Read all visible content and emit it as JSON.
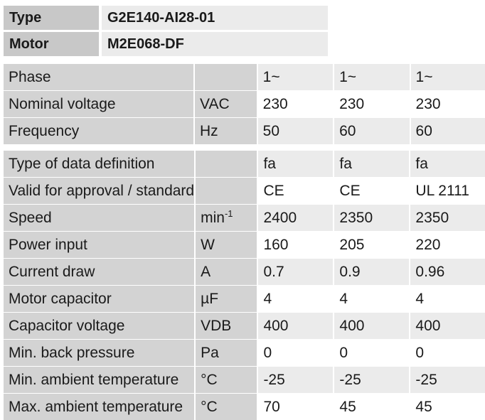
{
  "header": {
    "type_label": "Type",
    "type_value": "G2E140-AI28-01",
    "motor_label": "Motor",
    "motor_value": "M2E068-DF"
  },
  "group1": [
    {
      "label": "Phase",
      "unit": "",
      "v1": "1~",
      "v2": "1~",
      "v3": "1~"
    },
    {
      "label": "Nominal voltage",
      "unit": "VAC",
      "v1": "230",
      "v2": "230",
      "v3": "230"
    },
    {
      "label": "Frequency",
      "unit": "Hz",
      "v1": "50",
      "v2": "60",
      "v3": "60"
    }
  ],
  "group2": [
    {
      "label": "Type of data definition",
      "unit": "",
      "v1": "fa",
      "v2": "fa",
      "v3": "fa"
    },
    {
      "label": "Valid for approval / standard",
      "unit": "",
      "v1": "CE",
      "v2": "CE",
      "v3": "UL 2111"
    },
    {
      "label": "Speed",
      "unit": "min",
      "unit_sup": "-1",
      "v1": "2400",
      "v2": "2350",
      "v3": "2350"
    },
    {
      "label": "Power input",
      "unit": "W",
      "v1": "160",
      "v2": "205",
      "v3": "220"
    },
    {
      "label": "Current draw",
      "unit": "A",
      "v1": "0.7",
      "v2": "0.9",
      "v3": "0.96"
    },
    {
      "label": "Motor capacitor",
      "unit": "µF",
      "v1": "4",
      "v2": "4",
      "v3": "4"
    },
    {
      "label": "Capacitor voltage",
      "unit": "VDB",
      "v1": "400",
      "v2": "400",
      "v3": "400"
    },
    {
      "label": "Min. back pressure",
      "unit": "Pa",
      "v1": "0",
      "v2": "0",
      "v3": "0"
    },
    {
      "label": "Min. ambient temperature",
      "unit": "°C",
      "v1": "-25",
      "v2": "-25",
      "v3": "-25"
    },
    {
      "label": "Max. ambient temperature",
      "unit": "°C",
      "v1": "70",
      "v2": "45",
      "v3": "45"
    }
  ]
}
